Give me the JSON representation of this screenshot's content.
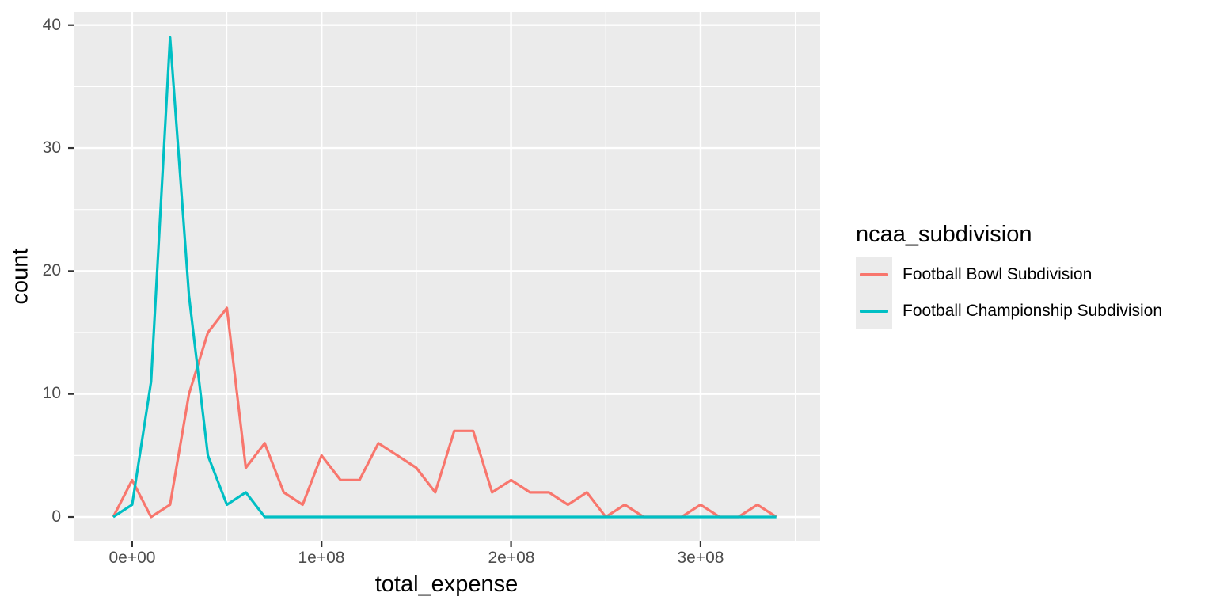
{
  "chart_data": {
    "type": "line",
    "subtype": "frequency-polygon",
    "title": "",
    "xlabel": "total_expense",
    "ylabel": "count",
    "x_tick_labels": [
      "0e+00",
      "1e+08",
      "2e+08",
      "3e+08"
    ],
    "x_tick_values": [
      0,
      100000000,
      200000000,
      300000000
    ],
    "y_tick_labels": [
      "0",
      "10",
      "20",
      "30",
      "40"
    ],
    "y_tick_values": [
      0,
      10,
      20,
      30,
      40
    ],
    "xlim": [
      -30900000,
      363200000
    ],
    "ylim": [
      -1.95,
      41.1
    ],
    "grid": "major and minor white gridlines on gray panel",
    "panel_background": "#ebebeb",
    "gridline_color": "#ffffff",
    "tick_mark_color": "#333333",
    "binwidth": 10000000,
    "legend": {
      "title": "ncaa_subdivision",
      "position": "right"
    },
    "x": [
      -10000000,
      0,
      10000000,
      20000000,
      30000000,
      40000000,
      50000000,
      60000000,
      70000000,
      80000000,
      90000000,
      100000000,
      110000000,
      120000000,
      130000000,
      140000000,
      150000000,
      160000000,
      170000000,
      180000000,
      190000000,
      200000000,
      210000000,
      220000000,
      230000000,
      240000000,
      250000000,
      260000000,
      270000000,
      280000000,
      290000000,
      300000000,
      310000000,
      320000000,
      330000000,
      340000000
    ],
    "series": [
      {
        "name": "Football Bowl Subdivision",
        "color": "#F8766D",
        "values": [
          0,
          3,
          0,
          1,
          10,
          15,
          17,
          4,
          6,
          2,
          1,
          5,
          3,
          3,
          6,
          5,
          4,
          2,
          7,
          7,
          2,
          3,
          2,
          2,
          1,
          2,
          0,
          1,
          0,
          0,
          0,
          1,
          0,
          0,
          1,
          0
        ]
      },
      {
        "name": "Football Championship Subdivision",
        "color": "#00BFC4",
        "values": [
          0,
          1,
          11,
          39,
          18,
          5,
          1,
          2,
          0,
          0,
          0,
          0,
          0,
          0,
          0,
          0,
          0,
          0,
          0,
          0,
          0,
          0,
          0,
          0,
          0,
          0,
          0,
          0,
          0,
          0,
          0,
          0,
          0,
          0,
          0,
          0
        ]
      }
    ]
  }
}
